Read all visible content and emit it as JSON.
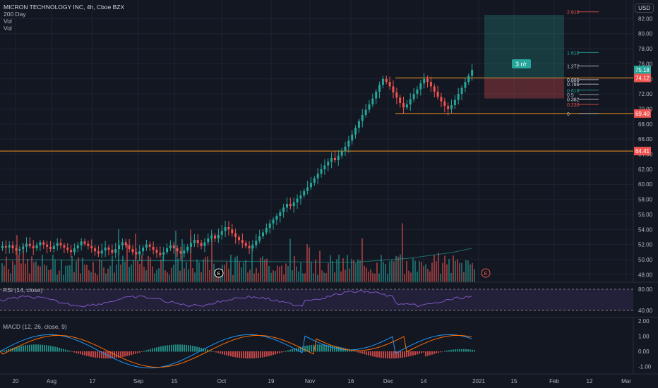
{
  "header": {
    "title": "MICRON TECHNOLOGY INC, 4h, Cboe BZX",
    "indicators": [
      "200 Day",
      "Vol",
      "Vol"
    ],
    "currency_button": "USD"
  },
  "panes": {
    "rsi_label": "RSI (14, close)",
    "macd_label": "MACD (12, 26, close, 9)"
  },
  "colors": {
    "background": "#131722",
    "up": "#26a69a",
    "down": "#ef5350",
    "level_line": "#f7931a",
    "rsi_line": "#7e57c2",
    "macd_line": "#2196f3",
    "signal_line": "#ff6d00"
  },
  "chart_data": {
    "type": "candlestick",
    "title": "MICRON TECHNOLOGY INC, 4h, Cboe BZX",
    "y_ticks": [
      "48.00",
      "50.00",
      "52.00",
      "54.00",
      "56.00",
      "58.00",
      "60.00",
      "62.00",
      "64.00",
      "66.00",
      "68.00",
      "70.00",
      "72.00",
      "74.00",
      "76.00",
      "78.00",
      "80.00",
      "82.00"
    ],
    "ylim": [
      47,
      84
    ],
    "x_ticks": [
      "20",
      "Aug",
      "17",
      "Sep",
      "15",
      "Oct",
      "19",
      "Nov",
      "16",
      "Dec",
      "14",
      "2021",
      "15",
      "Feb",
      "12",
      "Mar"
    ],
    "price_labels": [
      {
        "text": "75.18",
        "value": 75.18,
        "color": "#26a69a"
      },
      {
        "text": "74.12",
        "value": 74.12,
        "color": "#ef5350"
      },
      {
        "text": "69.40",
        "value": 69.4,
        "color": "#ef5350"
      },
      {
        "text": "64.41",
        "value": 64.41,
        "color": "#ef5350"
      }
    ],
    "horizontal_levels": [
      74.12,
      69.4,
      64.41
    ],
    "fib_levels": [
      {
        "label": "2.618",
        "value": 82.9,
        "color": "#ef5350"
      },
      {
        "label": "1.618",
        "value": 77.5,
        "color": "#26a69a"
      },
      {
        "label": "1.272",
        "value": 75.7,
        "color": "#d1d4dc"
      },
      {
        "label": "0.886",
        "value": 73.9,
        "color": "#d1d4dc"
      },
      {
        "label": "0.786",
        "value": 73.3,
        "color": "#d1d4dc"
      },
      {
        "label": "0.618",
        "value": 72.5,
        "color": "#26a69a"
      },
      {
        "label": "0.5",
        "value": 71.9,
        "color": "#b2b5be"
      },
      {
        "label": "0.382",
        "value": 71.3,
        "color": "#d1d4dc"
      },
      {
        "label": "0.236",
        "value": 70.6,
        "color": "#ef5350"
      },
      {
        "label": "0",
        "value": 69.4,
        "color": "#b2b5be"
      }
    ],
    "position_tool": {
      "label": "3 r/r",
      "entry": 74.12,
      "target": 82.5,
      "stop": 71.4
    },
    "closes": [
      51.8,
      51.6,
      51.9,
      51.5,
      51.2,
      51.4,
      51.7,
      52.1,
      51.8,
      51.5,
      51.9,
      52.3,
      52.0,
      51.7,
      51.4,
      51.8,
      52.2,
      51.9,
      51.6,
      51.3,
      51.0,
      51.5,
      51.9,
      52.4,
      52.1,
      51.8,
      51.5,
      51.1,
      50.8,
      51.2,
      51.6,
      51.3,
      50.9,
      51.4,
      51.9,
      52.3,
      51.9,
      51.4,
      51.0,
      50.7,
      51.1,
      51.6,
      52.0,
      51.7,
      51.3,
      50.9,
      50.6,
      51.0,
      51.5,
      51.9,
      51.5,
      51.1,
      50.8,
      51.2,
      51.7,
      52.2,
      52.6,
      52.2,
      51.8,
      52.3,
      52.8,
      53.2,
      52.8,
      53.3,
      53.8,
      54.3,
      54.0,
      53.5,
      53.0,
      52.6,
      52.2,
      51.8,
      51.5,
      51.9,
      52.5,
      53.1,
      53.6,
      54.2,
      54.8,
      55.3,
      55.8,
      56.3,
      56.9,
      57.4,
      57.1,
      57.6,
      58.1,
      58.5,
      59.1,
      59.6,
      60.2,
      60.8,
      61.4,
      62.0,
      62.5,
      63.0,
      63.5,
      63.2,
      63.8,
      64.4,
      65.0,
      65.8,
      66.6,
      67.5,
      68.4,
      69.2,
      69.9,
      70.6,
      71.4,
      72.3,
      73.2,
      74.0,
      73.6,
      73.0,
      72.2,
      71.5,
      70.8,
      70.2,
      70.6,
      71.3,
      72.0,
      72.6,
      73.4,
      74.0,
      73.6,
      73.0,
      72.3,
      71.6,
      71.0,
      70.4,
      70.0,
      70.5,
      71.2,
      72.0,
      72.8,
      73.6,
      74.4,
      75.2
    ]
  }
}
